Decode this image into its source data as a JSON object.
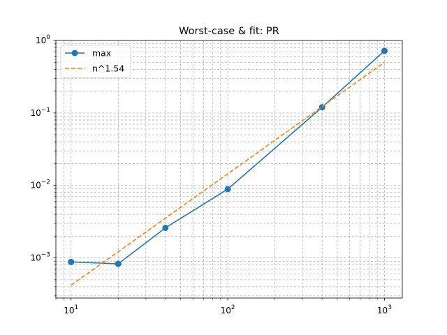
{
  "chart_data": {
    "type": "line",
    "title": "Worst-case & fit: PR",
    "xlabel": "",
    "ylabel": "",
    "xscale": "log",
    "yscale": "log",
    "xlim": [
      8,
      1300
    ],
    "ylim": [
      0.00028,
      1.0
    ],
    "grid": {
      "major": true,
      "minor": true,
      "style": "dashed"
    },
    "legend_position": "top-left",
    "x_ticks": [
      {
        "value": 10,
        "base": "10",
        "exp": "1"
      },
      {
        "value": 100,
        "base": "10",
        "exp": "2"
      },
      {
        "value": 1000,
        "base": "10",
        "exp": "3"
      }
    ],
    "y_ticks": [
      {
        "value": 0.001,
        "base": "10",
        "exp": "−3"
      },
      {
        "value": 0.01,
        "base": "10",
        "exp": "−2"
      },
      {
        "value": 0.1,
        "base": "10",
        "exp": "−1"
      },
      {
        "value": 1,
        "base": "10",
        "exp": "0"
      }
    ],
    "series": [
      {
        "name": "max",
        "color": "#1f77b4",
        "style": "solid",
        "marker": "circle",
        "x": [
          10,
          20,
          40,
          100,
          400,
          1000
        ],
        "y": [
          0.00088,
          0.00083,
          0.0026,
          0.0089,
          0.12,
          0.72
        ]
      },
      {
        "name": "n^1.54",
        "color": "#ff7f0e",
        "style": "dashed",
        "marker": "none",
        "x": [
          10,
          1000
        ],
        "y": [
          0.00042,
          0.5
        ]
      }
    ]
  }
}
